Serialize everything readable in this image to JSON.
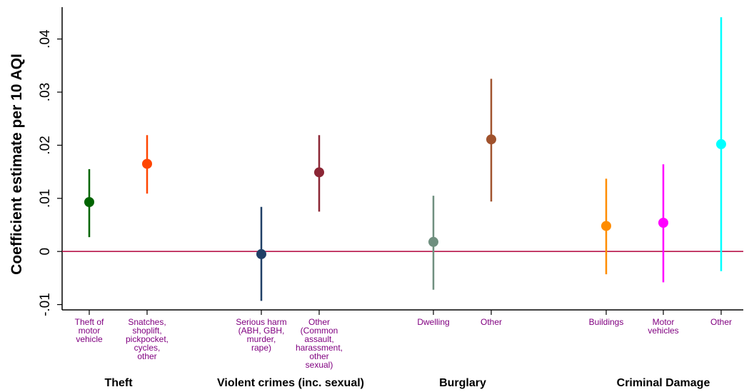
{
  "chart_data": {
    "type": "scatter",
    "title": "",
    "xlabel": "",
    "ylabel": "Coefficient estimate per 10 AQI",
    "ylim": [
      -0.011,
      0.046
    ],
    "yticks": [
      -0.01,
      0,
      0.01,
      0.02,
      0.03,
      0.04
    ],
    "ytick_labels": [
      "-.01",
      "0",
      ".01",
      ".02",
      ".03",
      ".04"
    ],
    "reference_line": {
      "y": 0,
      "color": "#B0003A"
    },
    "grid": false,
    "legend": "none",
    "groups": [
      {
        "label": "Theft"
      },
      {
        "label": "Violent crimes (inc. sexual)"
      },
      {
        "label": "Burglary"
      },
      {
        "label": "Criminal Damage"
      }
    ],
    "points": [
      {
        "group": 0,
        "label": [
          "Theft of",
          "motor",
          "vehicle"
        ],
        "estimate": 0.0093,
        "ci_low": 0.0027,
        "ci_high": 0.0155,
        "color": "#006400"
      },
      {
        "group": 0,
        "label": [
          "Snatches,",
          "shoplift,",
          "pickpocket,",
          "cycles,",
          "other"
        ],
        "estimate": 0.0165,
        "ci_low": 0.0109,
        "ci_high": 0.0219,
        "color": "#FF4500"
      },
      {
        "group": 1,
        "label": [
          "Serious harm",
          "(ABH, GBH,",
          "murder,",
          "rape)"
        ],
        "estimate": -0.0005,
        "ci_low": -0.0093,
        "ci_high": 0.0084,
        "color": "#1F3F66"
      },
      {
        "group": 1,
        "label": [
          "Other",
          "(Common",
          "assault,",
          "harassment,",
          "other",
          "sexual)"
        ],
        "estimate": 0.0149,
        "ci_low": 0.0075,
        "ci_high": 0.0219,
        "color": "#8B2635"
      },
      {
        "group": 2,
        "label": [
          "Dwelling"
        ],
        "estimate": 0.0018,
        "ci_low": -0.0072,
        "ci_high": 0.0105,
        "color": "#6F8F7F"
      },
      {
        "group": 2,
        "label": [
          "Other"
        ],
        "estimate": 0.0211,
        "ci_low": 0.0094,
        "ci_high": 0.0325,
        "color": "#A0522D"
      },
      {
        "group": 3,
        "label": [
          "Buildings"
        ],
        "estimate": 0.0048,
        "ci_low": -0.0043,
        "ci_high": 0.0137,
        "color": "#FF8C00"
      },
      {
        "group": 3,
        "label": [
          "Motor",
          "vehicles"
        ],
        "estimate": 0.0054,
        "ci_low": -0.0058,
        "ci_high": 0.0164,
        "color": "#FF00FF"
      },
      {
        "group": 3,
        "label": [
          "Other"
        ],
        "estimate": 0.0202,
        "ci_low": -0.0037,
        "ci_high": 0.0441,
        "color": "#00FFFF"
      }
    ]
  }
}
